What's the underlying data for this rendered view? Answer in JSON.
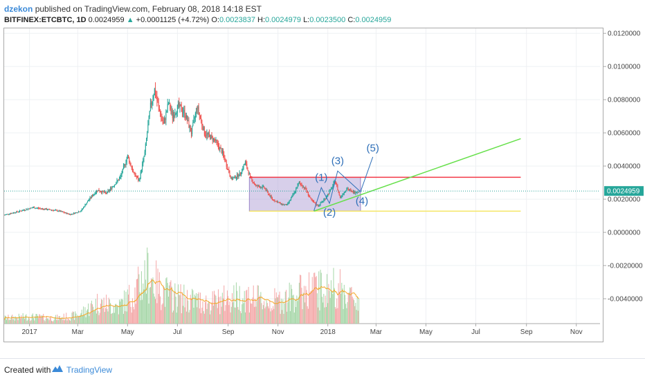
{
  "header": {
    "publisher": "dzekon",
    "published_text": "published on TradingView.com, February 08, 2018 14:18 EST",
    "symbol": "BITFINEX:ETCBTC, 1D",
    "last": "0.0024959",
    "change_arrow": "▲",
    "change": "+0.0001125 (+4.72%)",
    "open_label": "O:",
    "open": "0.0023837",
    "high_label": "H:",
    "high": "0.0024979",
    "low_label": "L:",
    "low": "0.0023500",
    "close_label": "C:",
    "close": "0.0024959"
  },
  "footer": {
    "created_with": "Created with",
    "brand": "TradingView"
  },
  "colors": {
    "up": "#26a69a",
    "down": "#ef5350",
    "volume_up": "#a5d6a7",
    "volume_down": "#f4a6a6",
    "volume_ma": "#f5a623",
    "resistance": "#f23645",
    "support": "#f5e663",
    "trendline": "#66e04a",
    "wave": "#2e6fb8",
    "box_fill": "#b7a8d8",
    "price_line": "#26a69a",
    "price_label_bg": "#26a69a",
    "brand": "#3b8ad8"
  },
  "chart_data": {
    "type": "candlestick",
    "x_type": "time",
    "x_range": [
      "2016-12-01",
      "2018-11-30"
    ],
    "x_ticks": [
      {
        "date": "2017-01-01",
        "label": "2017"
      },
      {
        "date": "2017-03-01",
        "label": "Mar"
      },
      {
        "date": "2017-05-01",
        "label": "May"
      },
      {
        "date": "2017-07-01",
        "label": "Jul"
      },
      {
        "date": "2017-09-01",
        "label": "Sep"
      },
      {
        "date": "2017-11-01",
        "label": "Nov"
      },
      {
        "date": "2018-01-01",
        "label": "2018"
      },
      {
        "date": "2018-03-01",
        "label": "Mar"
      },
      {
        "date": "2018-05-01",
        "label": "May"
      },
      {
        "date": "2018-07-01",
        "label": "Jul"
      },
      {
        "date": "2018-09-01",
        "label": "Sep"
      },
      {
        "date": "2018-11-01",
        "label": "Nov"
      }
    ],
    "y_range": [
      -0.0055,
      0.0123
    ],
    "y_ticks": [
      "0.0120000",
      "0.0100000",
      "0.0080000",
      "0.0060000",
      "0.0040000",
      "0.0020000",
      "0.0000000",
      "-0.0020000",
      "-0.0040000"
    ],
    "grid": true,
    "last_price": 0.0024959,
    "last_price_label": "0.0024959",
    "price_path": [
      [
        "2016-12-01",
        0.00105
      ],
      [
        "2016-12-20",
        0.00128
      ],
      [
        "2017-01-05",
        0.0015
      ],
      [
        "2017-01-20",
        0.0014
      ],
      [
        "2017-02-05",
        0.0013
      ],
      [
        "2017-02-20",
        0.00108
      ],
      [
        "2017-03-05",
        0.0013
      ],
      [
        "2017-03-15",
        0.002
      ],
      [
        "2017-03-25",
        0.00255
      ],
      [
        "2017-04-05",
        0.00235
      ],
      [
        "2017-04-15",
        0.0029
      ],
      [
        "2017-04-22",
        0.0033
      ],
      [
        "2017-05-01",
        0.0046
      ],
      [
        "2017-05-08",
        0.0036
      ],
      [
        "2017-05-15",
        0.0031
      ],
      [
        "2017-05-22",
        0.0048
      ],
      [
        "2017-05-29",
        0.0076
      ],
      [
        "2017-06-03",
        0.0086
      ],
      [
        "2017-06-09",
        0.0073
      ],
      [
        "2017-06-14",
        0.0065
      ],
      [
        "2017-06-20",
        0.0078
      ],
      [
        "2017-06-25",
        0.007
      ],
      [
        "2017-07-02",
        0.0076
      ],
      [
        "2017-07-10",
        0.0072
      ],
      [
        "2017-07-18",
        0.006
      ],
      [
        "2017-07-25",
        0.0076
      ],
      [
        "2017-08-03",
        0.006
      ],
      [
        "2017-08-15",
        0.0056
      ],
      [
        "2017-08-25",
        0.0048
      ],
      [
        "2017-09-05",
        0.0032
      ],
      [
        "2017-09-15",
        0.0035
      ],
      [
        "2017-09-22",
        0.0042
      ],
      [
        "2017-09-28",
        0.0033
      ],
      [
        "2017-10-05",
        0.0028
      ],
      [
        "2017-10-15",
        0.0027
      ],
      [
        "2017-10-25",
        0.002
      ],
      [
        "2017-11-05",
        0.0017
      ],
      [
        "2017-11-12",
        0.00165
      ],
      [
        "2017-11-20",
        0.0023
      ],
      [
        "2017-11-27",
        0.003
      ],
      [
        "2017-12-05",
        0.0026
      ],
      [
        "2017-12-12",
        0.0019
      ],
      [
        "2017-12-20",
        0.0016
      ],
      [
        "2017-12-28",
        0.002
      ],
      [
        "2018-01-05",
        0.0026
      ],
      [
        "2018-01-10",
        0.0031
      ],
      [
        "2018-01-16",
        0.0021
      ],
      [
        "2018-01-24",
        0.00265
      ],
      [
        "2018-02-01",
        0.0024
      ],
      [
        "2018-02-08",
        0.0024959
      ]
    ],
    "volume_path": [
      [
        "2016-12-01",
        0.08
      ],
      [
        "2017-01-01",
        0.1
      ],
      [
        "2017-02-01",
        0.08
      ],
      [
        "2017-03-01",
        0.12
      ],
      [
        "2017-03-25",
        0.3
      ],
      [
        "2017-04-20",
        0.25
      ],
      [
        "2017-05-10",
        0.45
      ],
      [
        "2017-05-25",
        0.75
      ],
      [
        "2017-06-10",
        0.5
      ],
      [
        "2017-06-25",
        0.4
      ],
      [
        "2017-07-15",
        0.35
      ],
      [
        "2017-08-10",
        0.3
      ],
      [
        "2017-09-05",
        0.38
      ],
      [
        "2017-09-25",
        0.4
      ],
      [
        "2017-10-20",
        0.3
      ],
      [
        "2017-11-15",
        0.38
      ],
      [
        "2017-12-10",
        0.52
      ],
      [
        "2017-12-30",
        0.48
      ],
      [
        "2018-01-10",
        0.55
      ],
      [
        "2018-01-25",
        0.42
      ],
      [
        "2018-02-08",
        0.32
      ]
    ],
    "drawings": {
      "range_box": {
        "from": "2017-09-27",
        "to": "2018-02-10",
        "top": 0.00332,
        "bottom": 0.00128
      },
      "resistance": {
        "from": "2017-09-27",
        "to": "2018-08-25",
        "value": 0.00332
      },
      "support": {
        "from": "2017-09-27",
        "to": "2018-08-25",
        "value": 0.00128
      },
      "trendline": {
        "from": [
          "2017-12-15",
          0.00128
        ],
        "to": [
          "2018-08-25",
          0.00565
        ]
      },
      "wave": [
        {
          "date": "2017-12-15",
          "value": 0.0013,
          "label": ""
        },
        {
          "date": "2017-12-24",
          "value": 0.0027,
          "label": "(1)"
        },
        {
          "date": "2018-01-03",
          "value": 0.00175,
          "label": "(2)"
        },
        {
          "date": "2018-01-13",
          "value": 0.0037,
          "label": "(3)"
        },
        {
          "date": "2018-02-10",
          "value": 0.00245,
          "label": "(4)"
        },
        {
          "date": "2018-02-25",
          "value": 0.00455,
          "label": "(5)"
        }
      ]
    }
  }
}
